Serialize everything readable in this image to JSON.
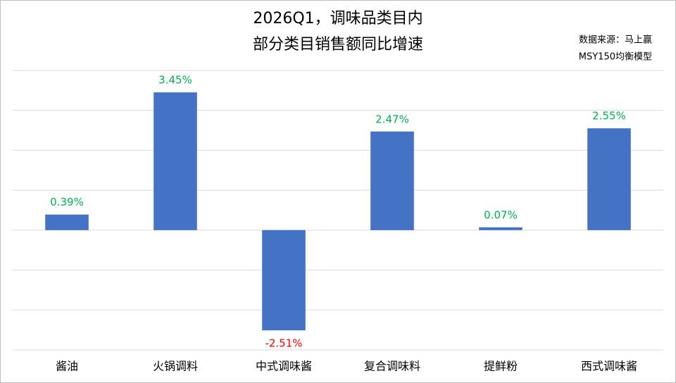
{
  "chart_data": {
    "type": "bar",
    "title_lines": [
      "2026Q1，调味品类目内",
      "部分类目销售额同比增速"
    ],
    "source_note": [
      "数据来源：马上赢",
      "MSY150均衡模型"
    ],
    "categories": [
      "酱油",
      "火锅调料",
      "中式调味酱",
      "复合调味料",
      "提鲜粉",
      "西式调味酱"
    ],
    "values": [
      0.39,
      3.45,
      -2.51,
      2.47,
      0.07,
      2.55
    ],
    "value_labels": [
      "0.39%",
      "3.45%",
      "-2.51%",
      "2.47%",
      "0.07%",
      "2.55%"
    ],
    "color": "#4472c4",
    "positive_label_color": "#00b050",
    "negative_label_color": "#ff0000",
    "ylim": [
      -3,
      4
    ],
    "yticks": [
      -3,
      -2,
      -1,
      0,
      1,
      2,
      3,
      4
    ],
    "grid": true
  }
}
